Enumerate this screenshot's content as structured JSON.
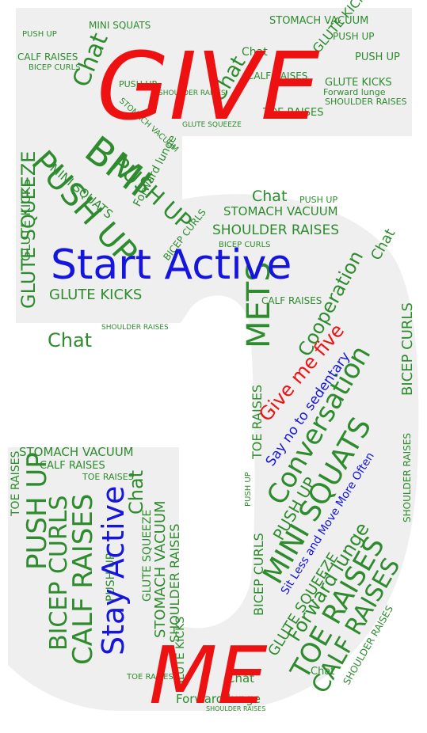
{
  "colors": {
    "background": "#ffffff",
    "shape": "#efefef",
    "green": "#2e8b2e",
    "red": "#ee1111",
    "blue": "#1515dd"
  },
  "big": {
    "give": "GIVE",
    "me": "ME",
    "start_active": "Start Active",
    "stay_active": "Stay Active",
    "give_me_five": "Give me five",
    "say_no": "Say no to sedentary",
    "sit_less": "Sit Less and Move More Often",
    "bmi": "BMI",
    "mets": "METS",
    "conversation": "Conversation",
    "cooperation": "Cooperation"
  },
  "words": {
    "push_up": "PUSH UP",
    "bicep_curls": "BICEP CURLS",
    "calf_raises": "CALF RAISES",
    "glute_squeeze": "GLUTE SQUEEZE",
    "glute_kicks": "GLUTE KICKS",
    "stomach_vacuum": "STOMACH VACUUM",
    "toe_raises": "TOE RAISES",
    "mini_squats": "MINI SQUATS",
    "shoulder_raises": "SHOULDER RAISES",
    "forward_lunge": "Forward lunge",
    "chat": "Chat"
  }
}
